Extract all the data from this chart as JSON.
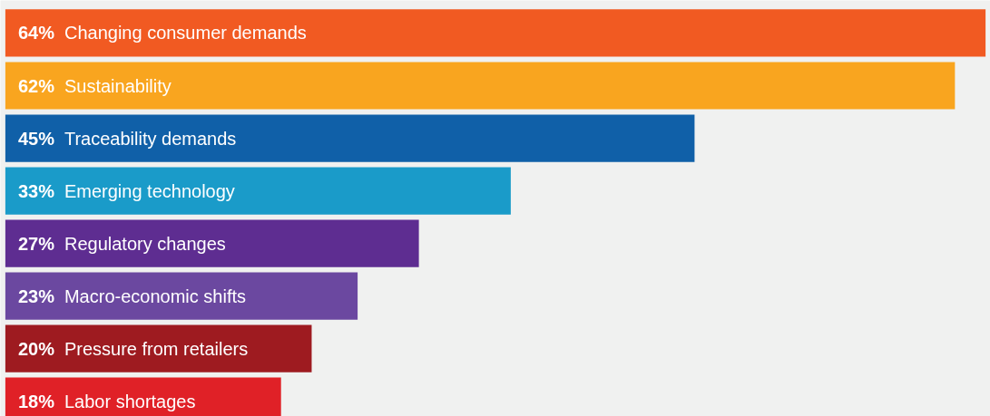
{
  "chart_data": {
    "type": "bar",
    "orientation": "horizontal",
    "categories": [
      "Changing consumer demands",
      "Sustainability",
      "Traceability demands",
      "Emerging technology",
      "Regulatory changes",
      "Macro-economic shifts",
      "Pressure from retailers",
      "Labor shortages"
    ],
    "values": [
      64,
      62,
      45,
      33,
      27,
      23,
      20,
      18
    ],
    "value_labels": [
      "64%",
      "62%",
      "45%",
      "33%",
      "27%",
      "23%",
      "20%",
      "18%"
    ],
    "colors": [
      "#f15a22",
      "#f9a51f",
      "#1060a8",
      "#1a9bc9",
      "#5e2d91",
      "#6b48a0",
      "#9e1b20",
      "#e02127"
    ],
    "grid": false
  }
}
